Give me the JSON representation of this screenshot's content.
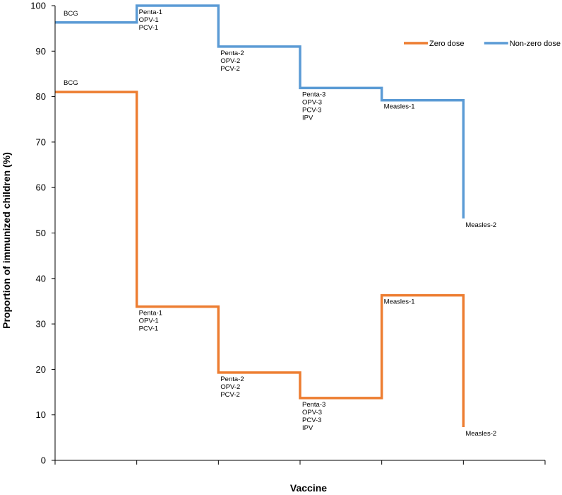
{
  "chart_data": {
    "type": "line",
    "step": true,
    "title": "",
    "xlabel": "Vaccine",
    "ylabel": "Proportion of immunized children (%)",
    "ylim": [
      0,
      100
    ],
    "yticks": [
      0,
      10,
      20,
      30,
      40,
      50,
      60,
      70,
      80,
      90,
      100
    ],
    "grid": false,
    "legend": {
      "position": "top-right",
      "entries": [
        "Zero dose",
        "Non-zero dose"
      ]
    },
    "series": [
      {
        "name": "Non-zero dose",
        "color": "#5B9BD5",
        "x": [
          0,
          1,
          2,
          3,
          4,
          5
        ],
        "values": [
          96.3,
          100,
          91,
          81.9,
          79.2,
          53.2
        ],
        "labels": [
          [
            "BCG"
          ],
          [
            "Penta-1",
            "OPV-1",
            "PCV-1"
          ],
          [
            "Penta-2",
            "OPV-2",
            "PCV-2"
          ],
          [
            "Penta-3",
            "OPV-3",
            "PCV-3",
            "IPV"
          ],
          [
            "Measles-1"
          ],
          [
            "Measles-2"
          ]
        ]
      },
      {
        "name": "Zero dose",
        "color": "#ED7D31",
        "x": [
          0,
          1,
          2,
          3,
          4,
          5
        ],
        "values": [
          81,
          33.8,
          19.3,
          13.7,
          36.3,
          7.3
        ],
        "labels": [
          [
            "BCG"
          ],
          [
            "Penta-1",
            "OPV-1",
            "PCV-1"
          ],
          [
            "Penta-2",
            "OPV-2",
            "PCV-2"
          ],
          [
            "Penta-3",
            "OPV-3",
            "PCV-3",
            "IPV"
          ],
          [
            "Measles-1"
          ],
          [
            "Measles-2"
          ]
        ]
      }
    ]
  }
}
